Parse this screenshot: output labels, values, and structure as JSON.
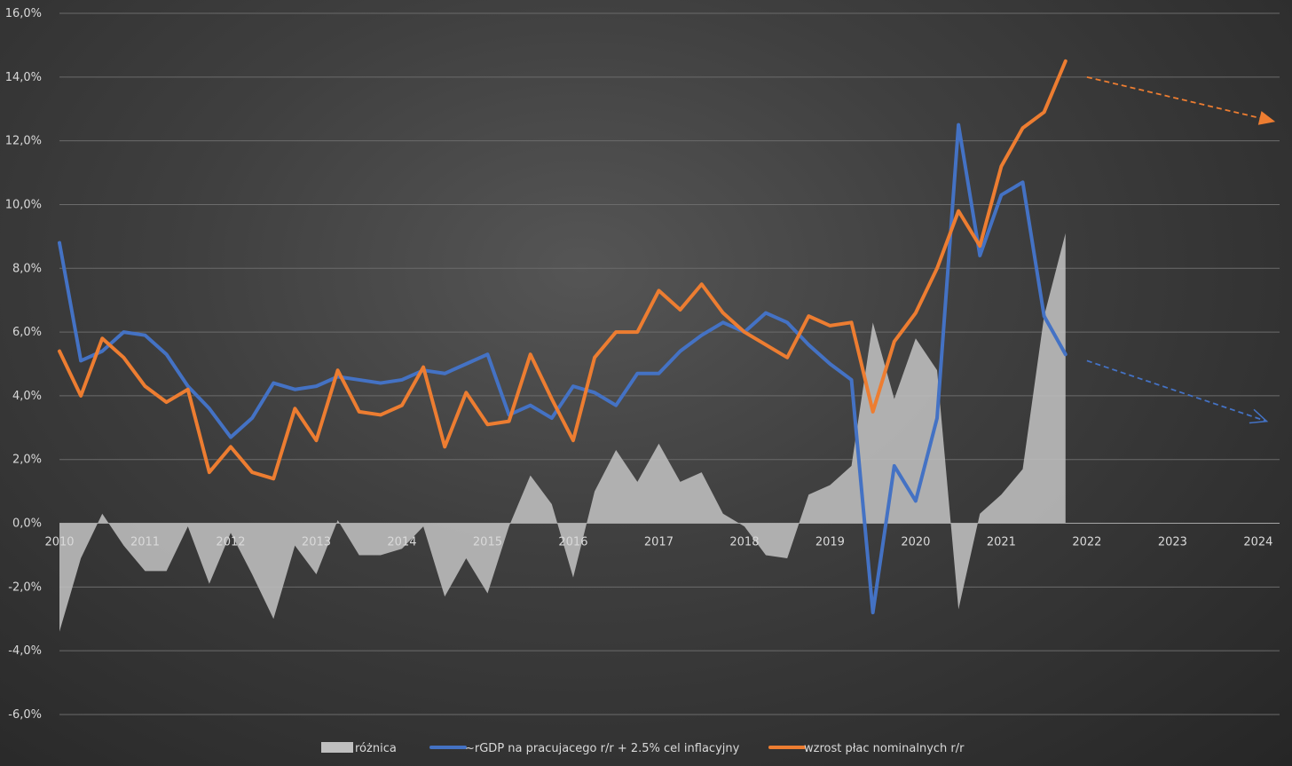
{
  "chart_data": {
    "type": "line",
    "title": "",
    "xlabel": "",
    "ylabel": "",
    "ylim": [
      -6,
      16
    ],
    "xlim": [
      2010,
      2024.25
    ],
    "y_ticks": [
      "16,0%",
      "14,0%",
      "12,0%",
      "10,0%",
      "8,0%",
      "6,0%",
      "4,0%",
      "2,0%",
      "0,0%",
      "-2,0%",
      "-4,0%",
      "-6,0%"
    ],
    "x_ticks": [
      "2010",
      "2011",
      "2012",
      "2013",
      "2014",
      "2015",
      "2016",
      "2017",
      "2018",
      "2019",
      "2020",
      "2021",
      "2022",
      "2023",
      "2024"
    ],
    "grid": true,
    "legend_position": "bottom",
    "x": [
      2010.0,
      2010.25,
      2010.5,
      2010.75,
      2011.0,
      2011.25,
      2011.5,
      2011.75,
      2012.0,
      2012.25,
      2012.5,
      2012.75,
      2013.0,
      2013.25,
      2013.5,
      2013.75,
      2014.0,
      2014.25,
      2014.5,
      2014.75,
      2015.0,
      2015.25,
      2015.5,
      2015.75,
      2016.0,
      2016.25,
      2016.5,
      2016.75,
      2017.0,
      2017.25,
      2017.5,
      2017.75,
      2018.0,
      2018.25,
      2018.5,
      2018.75,
      2019.0,
      2019.25,
      2019.5,
      2019.75,
      2020.0,
      2020.25,
      2020.5,
      2020.75,
      2021.0,
      2021.25,
      2021.5,
      2021.75
    ],
    "series": [
      {
        "name": "różnica",
        "kind": "area",
        "color": "#bfbfbf",
        "values": [
          -3.4,
          -1.1,
          0.3,
          -0.7,
          -1.5,
          -1.5,
          -0.1,
          -1.9,
          -0.3,
          -1.6,
          -3.0,
          -0.7,
          -1.6,
          0.1,
          -1.0,
          -1.0,
          -0.8,
          -0.1,
          -2.3,
          -1.1,
          -2.2,
          -0.1,
          1.5,
          0.6,
          -1.7,
          1.0,
          2.3,
          1.3,
          2.5,
          1.3,
          1.6,
          0.3,
          -0.1,
          -1.0,
          -1.1,
          0.9,
          1.2,
          1.8,
          6.3,
          3.9,
          5.8,
          4.8,
          -2.7,
          0.3,
          0.9,
          1.7,
          6.5,
          9.1
        ]
      },
      {
        "name": "~rGDP na pracujacego r/r + 2.5% cel inflacyjny",
        "kind": "line",
        "color": "#4472c4",
        "values": [
          8.8,
          5.1,
          5.4,
          6.0,
          5.9,
          5.3,
          4.3,
          3.6,
          2.7,
          3.3,
          4.4,
          4.2,
          4.3,
          4.6,
          4.5,
          4.4,
          4.5,
          4.8,
          4.7,
          5.0,
          5.3,
          3.4,
          3.7,
          3.3,
          4.3,
          4.1,
          3.7,
          4.7,
          4.7,
          5.4,
          5.9,
          6.3,
          6.0,
          6.6,
          6.3,
          5.6,
          5.0,
          4.5,
          -2.8,
          1.8,
          0.7,
          3.3,
          12.5,
          8.4,
          10.3,
          10.7,
          6.5,
          5.3
        ]
      },
      {
        "name": "wzrost płac nominalnych r/r",
        "kind": "line",
        "color": "#ed7d31",
        "values": [
          5.4,
          4.0,
          5.8,
          5.2,
          4.3,
          3.8,
          4.2,
          1.6,
          2.4,
          1.6,
          1.4,
          3.6,
          2.6,
          4.8,
          3.5,
          3.4,
          3.7,
          4.9,
          2.4,
          4.1,
          3.1,
          3.2,
          5.3,
          3.9,
          2.6,
          5.2,
          6.0,
          6.0,
          7.3,
          6.7,
          7.5,
          6.6,
          6.0,
          5.6,
          5.2,
          6.5,
          6.2,
          6.3,
          3.5,
          5.7,
          6.6,
          8.0,
          9.8,
          8.7,
          11.2,
          12.4,
          12.9,
          14.5
        ]
      }
    ],
    "annotations": [
      {
        "kind": "trend-arrow",
        "color": "#ed7d31",
        "from": [
          2022.0,
          14.0
        ],
        "to": [
          2024.2,
          12.6
        ]
      },
      {
        "kind": "trend-arrow",
        "color": "#4472c4",
        "from": [
          2022.0,
          5.1
        ],
        "to": [
          2024.1,
          3.2
        ]
      }
    ]
  }
}
